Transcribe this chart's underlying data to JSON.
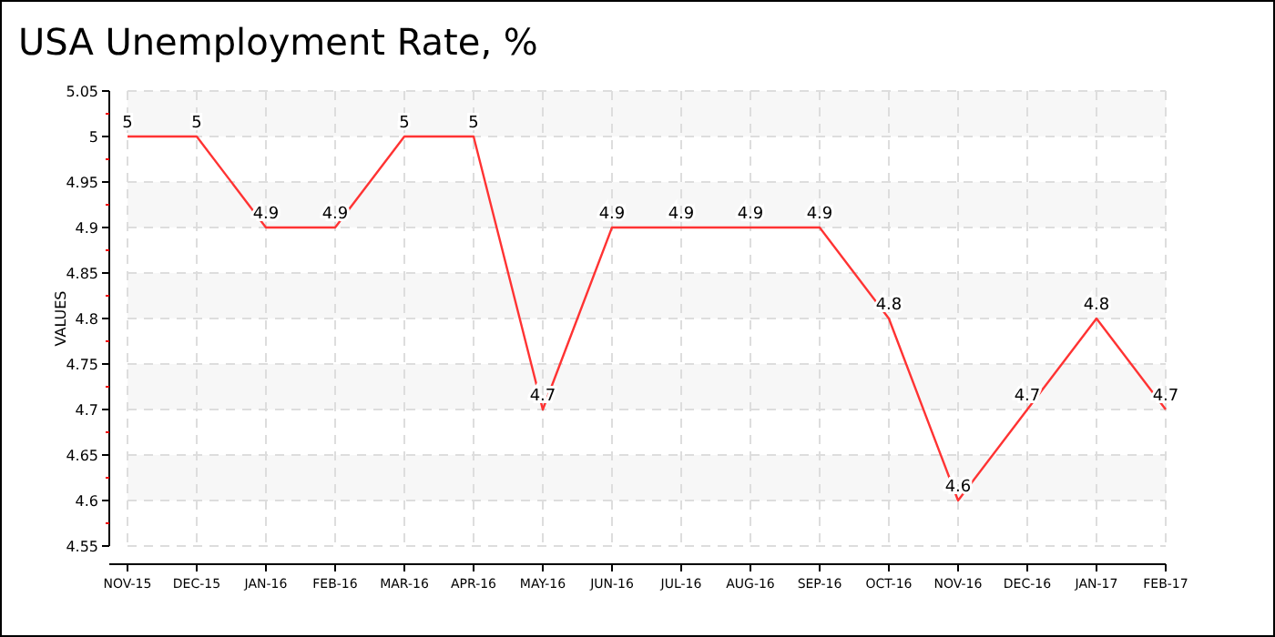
{
  "chart_data": {
    "type": "line",
    "title": "USA Unemployment Rate, %",
    "ylabel": "VALUES",
    "categories": [
      "NOV-15",
      "DEC-15",
      "JAN-16",
      "FEB-16",
      "MAR-16",
      "APR-16",
      "MAY-16",
      "JUN-16",
      "JUL-16",
      "AUG-16",
      "SEP-16",
      "OCT-16",
      "NOV-16",
      "DEC-16",
      "JAN-17",
      "FEB-17"
    ],
    "series": [
      {
        "color": "#ff3333",
        "values": [
          5,
          5,
          4.9,
          4.9,
          5,
          5,
          4.7,
          4.9,
          4.9,
          4.9,
          4.9,
          4.8,
          4.6,
          4.7,
          4.8,
          4.7
        ]
      }
    ],
    "ylim": [
      4.55,
      5.05
    ],
    "yticks": [
      4.55,
      4.6,
      4.65,
      4.7,
      4.75,
      4.8,
      4.85,
      4.9,
      4.95,
      5,
      5.05
    ],
    "grid": true,
    "data_labels": true,
    "marker": "none",
    "line_style": "solid"
  }
}
